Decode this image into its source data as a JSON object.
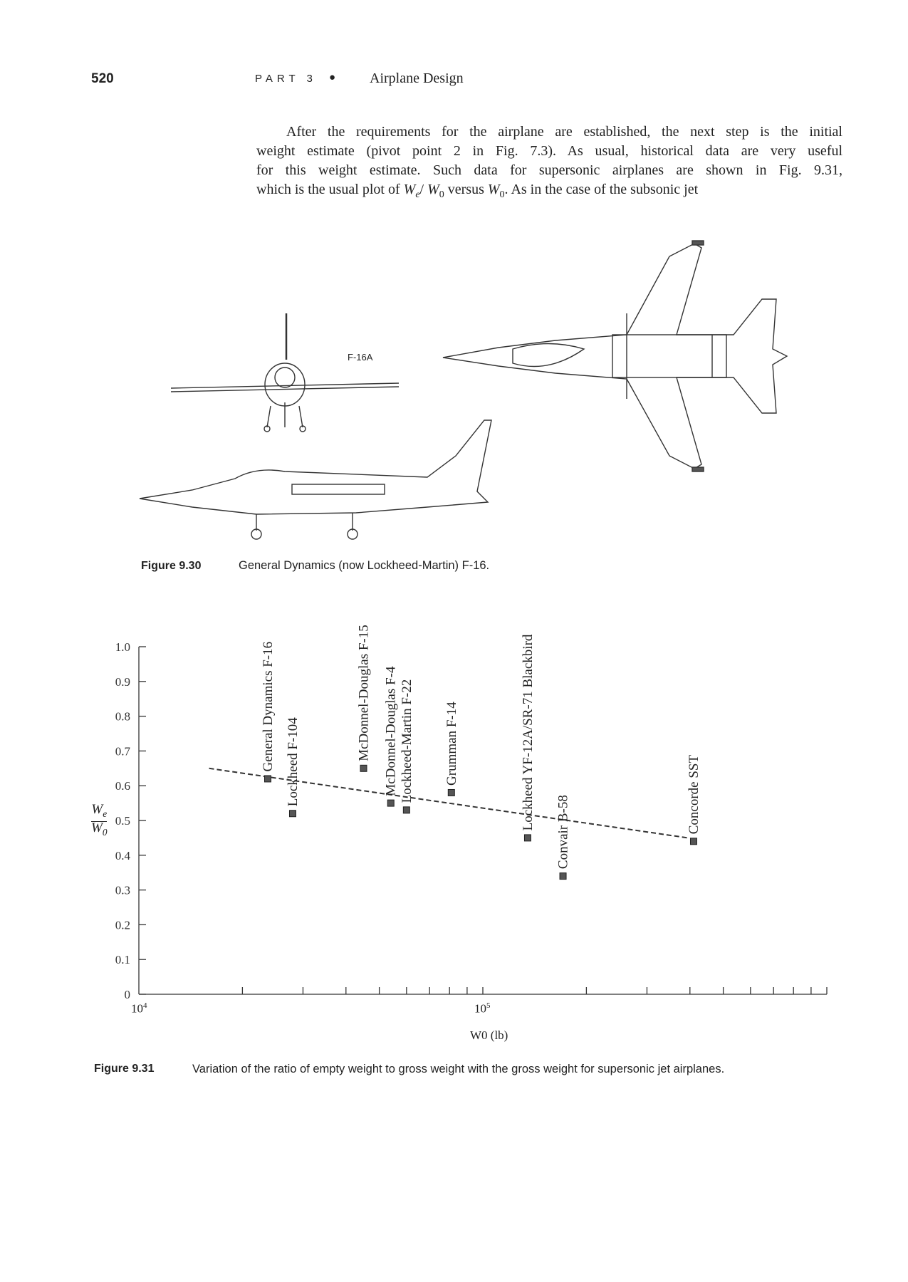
{
  "header": {
    "page_number": "520",
    "part": "PART 3",
    "bullet": "●",
    "chapter_title": "Airplane Design"
  },
  "body": {
    "lines": [
      "After the requirements for the airplane are established, the next step is the initial",
      "weight estimate (pivot point 2 in Fig. 7.3).  As usual, historical data are very useful",
      "for this weight estimate.  Such data for supersonic airplanes are shown in Fig. 9.31,"
    ],
    "line4": {
      "pre": "which is the usual plot of ",
      "math1": "W",
      "math1_sub": "e",
      "slash": "/ ",
      "math2": "W",
      "math2_sub": "0",
      "mid": " versus ",
      "math3": "W",
      "math3_sub": "0",
      "post": ".  As in the case of the subsonic jet"
    }
  },
  "figure_930": {
    "label": "Figure 9.30",
    "caption": "General Dynamics (now Lockheed-Martin) F-16.",
    "drawing_label": "F-16A"
  },
  "figure_931": {
    "label": "Figure 9.31",
    "caption": "Variation of the ratio of empty weight to gross weight with the gross weight for supersonic jet airplanes."
  },
  "chart_data": {
    "type": "scatter",
    "title": "",
    "xlabel": "W0 (lb)",
    "ylabel": "We/W0",
    "x_scale": "log",
    "xlim": [
      10000,
      1000000
    ],
    "ylim": [
      0,
      1.0
    ],
    "x_tick_labels": [
      "10^4",
      "10^5"
    ],
    "y_ticks": [
      0,
      0.1,
      0.2,
      0.3,
      0.4,
      0.5,
      0.6,
      0.7,
      0.8,
      0.9,
      1.0
    ],
    "y_tick_labels": [
      "0",
      "0.1",
      "0.2",
      "0.3",
      "0.4",
      "0.5",
      "0.6",
      "0.7",
      "0.8",
      "0.9",
      "1.0"
    ],
    "grid": false,
    "marker": "square",
    "points": [
      {
        "label": "General Dynamics F-16",
        "x": 23700,
        "y": 0.62
      },
      {
        "label": "Lockheed F-104",
        "x": 28000,
        "y": 0.52
      },
      {
        "label": "McDonnel-Douglas F-15",
        "x": 45000,
        "y": 0.65
      },
      {
        "label": "McDonnel-Douglas F-4",
        "x": 54000,
        "y": 0.55
      },
      {
        "label": "Lockheed-Martin F-22",
        "x": 60000,
        "y": 0.53
      },
      {
        "label": "Grumman F-14",
        "x": 81000,
        "y": 0.58
      },
      {
        "label": "Lockheed YF-12A/SR-71 Blackbird",
        "x": 135000,
        "y": 0.45
      },
      {
        "label": "Convair B-58",
        "x": 171000,
        "y": 0.34
      },
      {
        "label": "Concorde SST",
        "x": 410000,
        "y": 0.44
      }
    ],
    "trend_line": {
      "style": "dashed",
      "x": [
        16000,
        394000
      ],
      "y": [
        0.65,
        0.45
      ]
    }
  }
}
